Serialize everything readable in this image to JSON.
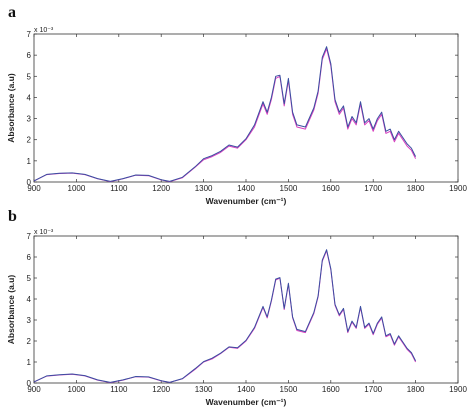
{
  "chart_data": [
    {
      "panel_label": "a",
      "type": "line",
      "xlabel": "Wavenumber (cm⁻¹)",
      "ylabel": "Absorbance (a.u)",
      "y_multiplier": "x 10⁻³",
      "xlim": [
        900,
        1900
      ],
      "ylim": [
        0,
        7
      ],
      "xticks": [
        "900",
        "1000",
        "1100",
        "1200",
        "1300",
        "1400",
        "1500",
        "1600",
        "1700",
        "1800",
        "1900"
      ],
      "yticks": [
        "0",
        "1",
        "2",
        "3",
        "4",
        "5",
        "6",
        "7"
      ],
      "series": [
        {
          "color": "#d63fbf",
          "x": [
            900,
            930,
            960,
            990,
            1020,
            1050,
            1080,
            1110,
            1140,
            1170,
            1200,
            1220,
            1250,
            1280,
            1300,
            1320,
            1340,
            1360,
            1380,
            1400,
            1420,
            1440,
            1450,
            1460,
            1470,
            1480,
            1490,
            1500,
            1510,
            1520,
            1540,
            1560,
            1570,
            1580,
            1590,
            1600,
            1610,
            1620,
            1630,
            1640,
            1650,
            1660,
            1670,
            1680,
            1690,
            1700,
            1710,
            1720,
            1730,
            1740,
            1750,
            1760,
            1770,
            1780,
            1790,
            1800
          ],
          "y": [
            0.05,
            0.35,
            0.4,
            0.42,
            0.35,
            0.15,
            0.02,
            0.15,
            0.32,
            0.3,
            0.1,
            0.02,
            0.2,
            0.7,
            1.05,
            1.2,
            1.4,
            1.7,
            1.6,
            2.0,
            2.6,
            3.7,
            3.2,
            3.9,
            4.9,
            5.0,
            3.6,
            4.8,
            3.2,
            2.6,
            2.5,
            3.4,
            4.2,
            5.8,
            6.3,
            5.5,
            3.8,
            3.2,
            3.5,
            2.5,
            3.0,
            2.7,
            3.7,
            2.7,
            2.9,
            2.4,
            2.9,
            3.2,
            2.3,
            2.4,
            1.9,
            2.3,
            2.0,
            1.7,
            1.5,
            1.1
          ]
        },
        {
          "color": "#3a4fa0",
          "x": [
            900,
            930,
            960,
            990,
            1020,
            1050,
            1080,
            1110,
            1140,
            1170,
            1200,
            1220,
            1250,
            1280,
            1300,
            1320,
            1340,
            1360,
            1380,
            1400,
            1420,
            1440,
            1450,
            1460,
            1470,
            1480,
            1490,
            1500,
            1510,
            1520,
            1540,
            1560,
            1570,
            1580,
            1590,
            1600,
            1610,
            1620,
            1630,
            1640,
            1650,
            1660,
            1670,
            1680,
            1690,
            1700,
            1710,
            1720,
            1730,
            1740,
            1750,
            1760,
            1770,
            1780,
            1790,
            1800
          ],
          "y": [
            0.05,
            0.36,
            0.41,
            0.43,
            0.36,
            0.16,
            0.03,
            0.16,
            0.33,
            0.31,
            0.11,
            0.03,
            0.22,
            0.72,
            1.1,
            1.25,
            1.45,
            1.75,
            1.65,
            2.05,
            2.7,
            3.8,
            3.3,
            4.0,
            5.0,
            5.05,
            3.7,
            4.9,
            3.3,
            2.7,
            2.6,
            3.5,
            4.3,
            5.9,
            6.4,
            5.6,
            3.9,
            3.3,
            3.6,
            2.6,
            3.1,
            2.8,
            3.8,
            2.8,
            3.0,
            2.5,
            3.0,
            3.3,
            2.4,
            2.5,
            2.0,
            2.4,
            2.1,
            1.8,
            1.6,
            1.2
          ]
        }
      ]
    },
    {
      "panel_label": "b",
      "type": "line",
      "xlabel": "Wavenumber (cm⁻¹)",
      "ylabel": "Absorbance (a.u)",
      "y_multiplier": "x 10⁻³",
      "xlim": [
        900,
        1900
      ],
      "ylim": [
        0,
        7
      ],
      "xticks": [
        "900",
        "1000",
        "1100",
        "1200",
        "1300",
        "1400",
        "1500",
        "1600",
        "1700",
        "1800",
        "1900"
      ],
      "yticks": [
        "0",
        "1",
        "2",
        "3",
        "4",
        "5",
        "6",
        "7"
      ],
      "series": [
        {
          "color": "#d63fbf",
          "x": [
            900,
            930,
            960,
            990,
            1020,
            1050,
            1080,
            1110,
            1140,
            1170,
            1200,
            1220,
            1250,
            1280,
            1300,
            1320,
            1340,
            1360,
            1380,
            1400,
            1420,
            1440,
            1450,
            1460,
            1470,
            1480,
            1490,
            1500,
            1510,
            1520,
            1540,
            1560,
            1570,
            1580,
            1590,
            1600,
            1610,
            1620,
            1630,
            1640,
            1650,
            1660,
            1670,
            1680,
            1690,
            1700,
            1710,
            1720,
            1730,
            1740,
            1750,
            1760,
            1770,
            1780,
            1790,
            1800
          ],
          "y": [
            0.05,
            0.33,
            0.38,
            0.42,
            0.34,
            0.14,
            0.02,
            0.14,
            0.3,
            0.28,
            0.1,
            0.03,
            0.2,
            0.65,
            1.0,
            1.15,
            1.4,
            1.7,
            1.65,
            2.0,
            2.6,
            3.6,
            3.1,
            3.9,
            4.9,
            5.0,
            3.5,
            4.7,
            3.1,
            2.5,
            2.4,
            3.3,
            4.1,
            5.8,
            6.3,
            5.4,
            3.7,
            3.2,
            3.5,
            2.4,
            2.9,
            2.6,
            3.6,
            2.6,
            2.8,
            2.3,
            2.8,
            3.1,
            2.2,
            2.3,
            1.8,
            2.2,
            1.9,
            1.6,
            1.4,
            1.0
          ]
        },
        {
          "color": "#3a4fa0",
          "x": [
            900,
            930,
            960,
            990,
            1020,
            1050,
            1080,
            1110,
            1140,
            1170,
            1200,
            1220,
            1250,
            1280,
            1300,
            1320,
            1340,
            1360,
            1380,
            1400,
            1420,
            1440,
            1450,
            1460,
            1470,
            1480,
            1490,
            1500,
            1510,
            1520,
            1540,
            1560,
            1570,
            1580,
            1590,
            1600,
            1610,
            1620,
            1630,
            1640,
            1650,
            1660,
            1670,
            1680,
            1690,
            1700,
            1710,
            1720,
            1730,
            1740,
            1750,
            1760,
            1770,
            1780,
            1790,
            1800
          ],
          "y": [
            0.05,
            0.34,
            0.39,
            0.43,
            0.35,
            0.15,
            0.03,
            0.15,
            0.31,
            0.29,
            0.11,
            0.03,
            0.21,
            0.68,
            1.02,
            1.18,
            1.42,
            1.72,
            1.68,
            2.03,
            2.65,
            3.65,
            3.15,
            3.95,
            4.95,
            5.02,
            3.55,
            4.75,
            3.15,
            2.55,
            2.45,
            3.35,
            4.15,
            5.85,
            6.35,
            5.45,
            3.75,
            3.25,
            3.55,
            2.45,
            2.95,
            2.65,
            3.65,
            2.65,
            2.85,
            2.35,
            2.85,
            3.15,
            2.25,
            2.35,
            1.85,
            2.25,
            1.95,
            1.65,
            1.45,
            1.05
          ]
        }
      ]
    }
  ]
}
